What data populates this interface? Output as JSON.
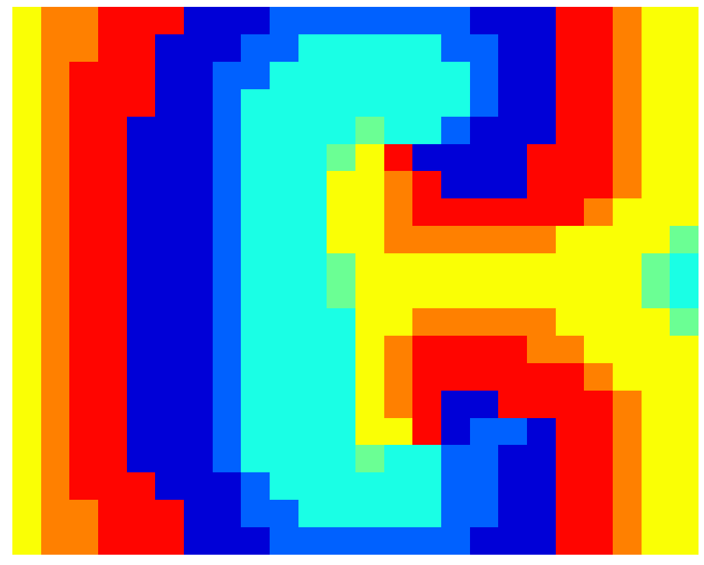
{
  "chart_data": {
    "type": "heatmap",
    "tick_labels": false,
    "zlim": [
      0,
      1
    ],
    "cells": [
      [
        0.62,
        0.75,
        0.75,
        0.87,
        0.87,
        0.87,
        0.08,
        0.08,
        0.08,
        0.22,
        0.22,
        0.22,
        0.22,
        0.22,
        0.22,
        0.22,
        0.08,
        0.08,
        0.08,
        0.87,
        0.87,
        0.75,
        0.62,
        0.62
      ],
      [
        0.62,
        0.75,
        0.75,
        0.87,
        0.87,
        0.08,
        0.08,
        0.08,
        0.22,
        0.22,
        0.4,
        0.4,
        0.4,
        0.4,
        0.4,
        0.22,
        0.22,
        0.08,
        0.08,
        0.87,
        0.87,
        0.75,
        0.62,
        0.62
      ],
      [
        0.62,
        0.75,
        0.87,
        0.87,
        0.87,
        0.08,
        0.08,
        0.22,
        0.22,
        0.4,
        0.4,
        0.4,
        0.4,
        0.4,
        0.4,
        0.4,
        0.22,
        0.08,
        0.08,
        0.87,
        0.87,
        0.75,
        0.62,
        0.62
      ],
      [
        0.62,
        0.75,
        0.87,
        0.87,
        0.87,
        0.08,
        0.08,
        0.22,
        0.4,
        0.4,
        0.4,
        0.4,
        0.4,
        0.4,
        0.4,
        0.4,
        0.22,
        0.08,
        0.08,
        0.87,
        0.87,
        0.75,
        0.62,
        0.62
      ],
      [
        0.62,
        0.75,
        0.87,
        0.87,
        0.08,
        0.08,
        0.08,
        0.22,
        0.4,
        0.4,
        0.4,
        0.4,
        0.48,
        0.4,
        0.4,
        0.22,
        0.08,
        0.08,
        0.08,
        0.87,
        0.87,
        0.75,
        0.62,
        0.62
      ],
      [
        0.62,
        0.75,
        0.87,
        0.87,
        0.08,
        0.08,
        0.08,
        0.22,
        0.4,
        0.4,
        0.4,
        0.48,
        0.62,
        0.87,
        0.08,
        0.08,
        0.08,
        0.08,
        0.87,
        0.87,
        0.87,
        0.75,
        0.62,
        0.62
      ],
      [
        0.62,
        0.75,
        0.87,
        0.87,
        0.08,
        0.08,
        0.08,
        0.22,
        0.4,
        0.4,
        0.4,
        0.62,
        0.62,
        0.75,
        0.87,
        0.08,
        0.08,
        0.08,
        0.87,
        0.87,
        0.87,
        0.75,
        0.62,
        0.62
      ],
      [
        0.62,
        0.75,
        0.87,
        0.87,
        0.08,
        0.08,
        0.08,
        0.22,
        0.4,
        0.4,
        0.4,
        0.62,
        0.62,
        0.75,
        0.87,
        0.87,
        0.87,
        0.87,
        0.87,
        0.87,
        0.75,
        0.62,
        0.62,
        0.62
      ],
      [
        0.62,
        0.75,
        0.87,
        0.87,
        0.08,
        0.08,
        0.08,
        0.22,
        0.4,
        0.4,
        0.4,
        0.62,
        0.62,
        0.75,
        0.75,
        0.75,
        0.75,
        0.75,
        0.75,
        0.62,
        0.62,
        0.62,
        0.62,
        0.48
      ],
      [
        0.62,
        0.75,
        0.87,
        0.87,
        0.08,
        0.08,
        0.08,
        0.22,
        0.4,
        0.4,
        0.4,
        0.48,
        0.62,
        0.62,
        0.62,
        0.62,
        0.62,
        0.62,
        0.62,
        0.62,
        0.62,
        0.62,
        0.48,
        0.4
      ],
      [
        0.62,
        0.75,
        0.87,
        0.87,
        0.08,
        0.08,
        0.08,
        0.22,
        0.4,
        0.4,
        0.4,
        0.48,
        0.62,
        0.62,
        0.62,
        0.62,
        0.62,
        0.62,
        0.62,
        0.62,
        0.62,
        0.62,
        0.48,
        0.4
      ],
      [
        0.62,
        0.75,
        0.87,
        0.87,
        0.08,
        0.08,
        0.08,
        0.22,
        0.4,
        0.4,
        0.4,
        0.4,
        0.62,
        0.62,
        0.75,
        0.75,
        0.75,
        0.75,
        0.75,
        0.62,
        0.62,
        0.62,
        0.62,
        0.48
      ],
      [
        0.62,
        0.75,
        0.87,
        0.87,
        0.08,
        0.08,
        0.08,
        0.22,
        0.4,
        0.4,
        0.4,
        0.4,
        0.62,
        0.75,
        0.87,
        0.87,
        0.87,
        0.87,
        0.75,
        0.75,
        0.62,
        0.62,
        0.62,
        0.62
      ],
      [
        0.62,
        0.75,
        0.87,
        0.87,
        0.08,
        0.08,
        0.08,
        0.22,
        0.4,
        0.4,
        0.4,
        0.4,
        0.62,
        0.75,
        0.87,
        0.87,
        0.87,
        0.87,
        0.87,
        0.87,
        0.75,
        0.62,
        0.62,
        0.62
      ],
      [
        0.62,
        0.75,
        0.87,
        0.87,
        0.08,
        0.08,
        0.08,
        0.22,
        0.4,
        0.4,
        0.4,
        0.4,
        0.62,
        0.75,
        0.87,
        0.08,
        0.08,
        0.87,
        0.87,
        0.87,
        0.87,
        0.75,
        0.62,
        0.62
      ],
      [
        0.62,
        0.75,
        0.87,
        0.87,
        0.08,
        0.08,
        0.08,
        0.22,
        0.4,
        0.4,
        0.4,
        0.4,
        0.62,
        0.62,
        0.87,
        0.08,
        0.22,
        0.22,
        0.08,
        0.87,
        0.87,
        0.75,
        0.62,
        0.62
      ],
      [
        0.62,
        0.75,
        0.87,
        0.87,
        0.08,
        0.08,
        0.08,
        0.22,
        0.4,
        0.4,
        0.4,
        0.4,
        0.48,
        0.4,
        0.4,
        0.22,
        0.22,
        0.08,
        0.08,
        0.87,
        0.87,
        0.75,
        0.62,
        0.62
      ],
      [
        0.62,
        0.75,
        0.87,
        0.87,
        0.87,
        0.08,
        0.08,
        0.08,
        0.22,
        0.4,
        0.4,
        0.4,
        0.4,
        0.4,
        0.4,
        0.22,
        0.22,
        0.08,
        0.08,
        0.87,
        0.87,
        0.75,
        0.62,
        0.62
      ],
      [
        0.62,
        0.75,
        0.75,
        0.87,
        0.87,
        0.87,
        0.08,
        0.08,
        0.22,
        0.22,
        0.4,
        0.4,
        0.4,
        0.4,
        0.4,
        0.22,
        0.22,
        0.08,
        0.08,
        0.87,
        0.87,
        0.75,
        0.62,
        0.62
      ],
      [
        0.62,
        0.75,
        0.75,
        0.87,
        0.87,
        0.87,
        0.08,
        0.08,
        0.08,
        0.22,
        0.22,
        0.22,
        0.22,
        0.22,
        0.22,
        0.22,
        0.08,
        0.08,
        0.08,
        0.87,
        0.87,
        0.75,
        0.62,
        0.62
      ]
    ]
  }
}
